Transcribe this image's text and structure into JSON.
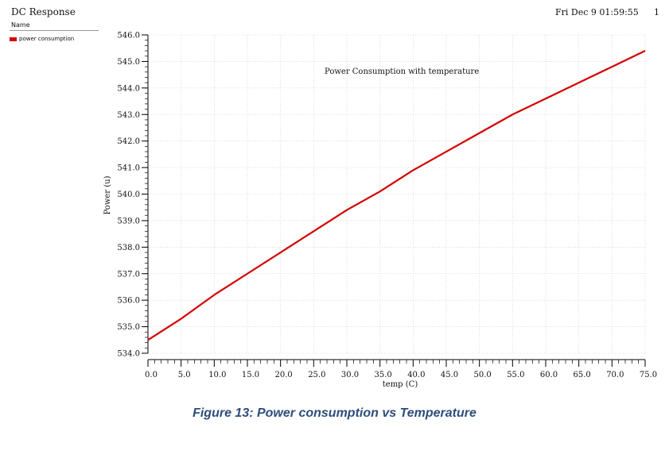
{
  "header": {
    "window_title": "DC Response",
    "name_header": "Name",
    "date": "Fri Dec 9 01:59:55",
    "page_number": "1"
  },
  "legend": {
    "entries": [
      {
        "label": "power consumption",
        "color": "#d40000"
      }
    ]
  },
  "figure_caption": "Figure 13: Power consumption vs Temperature",
  "chart_data": {
    "type": "line",
    "title": "",
    "annotation": "Power Consumption with temperature",
    "xlabel": "temp (C)",
    "ylabel": "Power (u)",
    "xlim": [
      0,
      75
    ],
    "ylim": [
      534,
      546
    ],
    "x_ticks": [
      "0.0",
      "5.0",
      "10.0",
      "15.0",
      "20.0",
      "25.0",
      "30.0",
      "35.0",
      "40.0",
      "45.0",
      "50.0",
      "55.0",
      "60.0",
      "65.0",
      "70.0",
      "75.0"
    ],
    "y_ticks": [
      "534.0",
      "535.0",
      "536.0",
      "537.0",
      "538.0",
      "539.0",
      "540.0",
      "541.0",
      "542.0",
      "543.0",
      "544.0",
      "545.0",
      "546.0"
    ],
    "grid": true,
    "series": [
      {
        "name": "power consumption",
        "color": "#d40000",
        "x": [
          0,
          5,
          10,
          15,
          20,
          25,
          30,
          35,
          40,
          45,
          50,
          55,
          60,
          65,
          70,
          75
        ],
        "y": [
          534.5,
          535.3,
          536.2,
          537.0,
          537.8,
          538.6,
          539.4,
          540.1,
          540.9,
          541.6,
          542.3,
          543.0,
          543.6,
          544.2,
          544.8,
          545.4
        ]
      }
    ]
  }
}
